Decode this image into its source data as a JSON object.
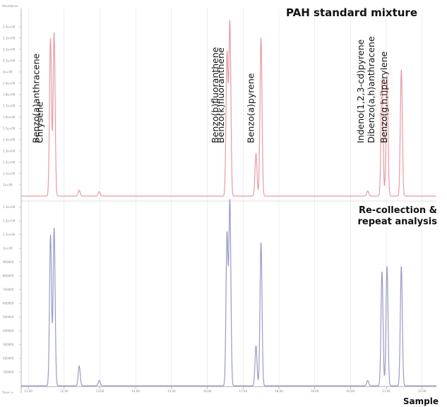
{
  "title": "PAH standard mixture",
  "colors": {
    "top": "#e89aa4",
    "bottom": "#9a9ac6",
    "axis": "#b0b0b0",
    "grid": "#dedede"
  },
  "panels": {
    "top": {
      "label": "PAH standard mixture"
    },
    "bottom": {
      "label_line1": "Re-collection &",
      "label_line2": "repeat analysis"
    }
  },
  "x_axis_label": "Sample",
  "corner_labels": {
    "top_left": "Abundance",
    "bottom_left": "Time-->"
  },
  "peak_labels": [
    {
      "text": "Benzo(a)anthracene",
      "x": 11.62
    },
    {
      "text": "Chrysene",
      "x": 11.72
    },
    {
      "text": "Benzo(b)fluoranthene",
      "x": 16.62
    },
    {
      "text": "Benzo(k)fluoranthene",
      "x": 16.78
    },
    {
      "text": "Benzo(a)pyrene",
      "x": 17.62
    },
    {
      "text": "Indeno(1,2,3-cd)pyrene",
      "x": 20.68
    },
    {
      "text": "Dibenzo(a,h)anthracene",
      "x": 20.98
    },
    {
      "text": "Benzo(g,h,i)perylene",
      "x": 21.33
    }
  ],
  "chart_data": {
    "type": "line",
    "title": "PAH standard mixture",
    "xlabel": "Sample",
    "ylabel": "Abundance",
    "xlim": [
      10.8,
      22.4
    ],
    "x_ticks": [
      "11.00",
      "12.00",
      "13.00",
      "14.00",
      "15.00",
      "16.00",
      "17.00",
      "18.00",
      "19.00",
      "20.00",
      "21.00",
      "22.00"
    ],
    "series": [
      {
        "panel": "top",
        "name": "PAH standard mixture",
        "ylim": [
          100000,
          2500000
        ],
        "y_ticks": [
          "2.4e+06",
          "2.3e+06",
          "2.2e+06",
          "2.1e+06",
          "2e+06",
          "1.9e+06",
          "1.8e+06",
          "1.7e+06",
          "1.6e+06",
          "1.5e+06",
          "1.4e+06",
          "1.3e+06",
          "1.2e+06",
          "1.1e+06",
          "1e+06"
        ],
        "peaks": [
          {
            "x": 11.62,
            "y": 2260000
          },
          {
            "x": 11.72,
            "y": 2340000
          },
          {
            "x": 12.42,
            "y": 180000
          },
          {
            "x": 12.98,
            "y": 160000
          },
          {
            "x": 16.55,
            "y": 2050000
          },
          {
            "x": 16.63,
            "y": 2480000
          },
          {
            "x": 17.36,
            "y": 680000
          },
          {
            "x": 17.5,
            "y": 2270000
          },
          {
            "x": 20.48,
            "y": 170000
          },
          {
            "x": 20.88,
            "y": 1700000
          },
          {
            "x": 21.02,
            "y": 1750000
          },
          {
            "x": 21.42,
            "y": 1830000
          }
        ]
      },
      {
        "panel": "bottom",
        "name": "Re-collection & repeat analysis",
        "ylim": [
          0,
          1400000
        ],
        "y_ticks": [
          "1.3e+06",
          "1.2e+06",
          "1.1e+06",
          "1e+06",
          "900000",
          "800000",
          "700000",
          "600000",
          "500000",
          "400000",
          "300000",
          "200000",
          "100000"
        ],
        "peaks": [
          {
            "x": 11.62,
            "y": 1140000
          },
          {
            "x": 11.72,
            "y": 1190000
          },
          {
            "x": 12.42,
            "y": 150000
          },
          {
            "x": 12.98,
            "y": 40000
          },
          {
            "x": 16.55,
            "y": 1140000
          },
          {
            "x": 16.63,
            "y": 1390000
          },
          {
            "x": 17.36,
            "y": 300000
          },
          {
            "x": 17.5,
            "y": 1080000
          },
          {
            "x": 20.48,
            "y": 40000
          },
          {
            "x": 20.88,
            "y": 860000
          },
          {
            "x": 21.02,
            "y": 900000
          },
          {
            "x": 21.42,
            "y": 900000
          }
        ]
      }
    ]
  }
}
